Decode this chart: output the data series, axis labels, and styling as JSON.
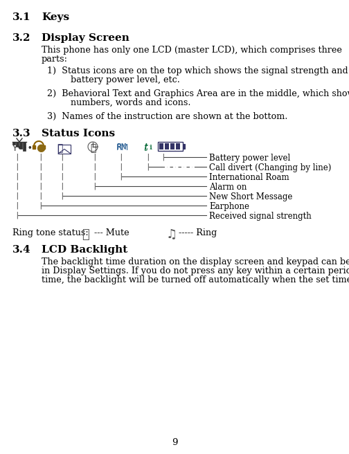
{
  "bg_color": "#ffffff",
  "text_color": "#000000",
  "page_number": "9",
  "sec31_num": "3.1",
  "sec31_title": "Keys",
  "sec32_num": "3.2",
  "sec32_title": "Display Screen",
  "para1_line1": "This phone has only one LCD (master LCD), which comprises three",
  "para1_line2": "parts:",
  "item1_line1": "1)  Status icons are on the top which shows the signal strength and",
  "item1_line2": "     battery power level, etc.",
  "item2_line1": "2)  Behavioral Text and Graphics Area are in the middle, which shows",
  "item2_line2": "     numbers, words and icons.",
  "item3_line1": "3)  Names of the instruction are shown at the bottom.",
  "sec33_num": "3.3",
  "sec33_title": "Status Icons",
  "sec34_num": "3.4",
  "sec34_title": "LCD Backlight",
  "lcd1": "The backlight time duration on the display screen and keypad can be set",
  "lcd2": "in Display Settings. If you do not press any key within a certain period of",
  "lcd3": "time, the backlight will be turned off automatically when the set time",
  "status_labels": [
    "Battery power level",
    "Call divert (Changing by line)",
    "International Roam",
    "Alarm on",
    "New Short Message",
    "Earphone",
    "Received signal strength"
  ],
  "ring_tone_text": "Ring tone status:",
  "mute_text": "--- Mute",
  "ring_text": "----- Ring",
  "icon_color_signal": "#333333",
  "icon_color_headphone": "#8B6914",
  "icon_color_msg": "#333366",
  "icon_color_rm": "#336699",
  "icon_color_t1": "#006633",
  "icon_color_batt": "#333366",
  "line_color": "#555555",
  "pipe_color": "#444444"
}
